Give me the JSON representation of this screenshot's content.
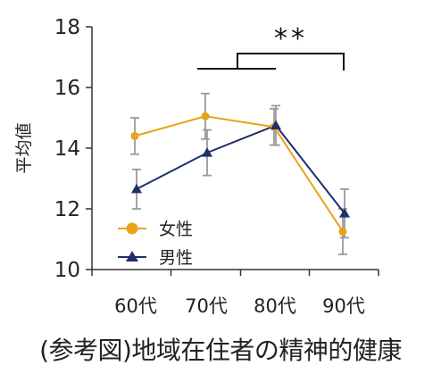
{
  "caption": "(参考図)地域在住者の精神的健康",
  "chart_data": {
    "type": "line",
    "categories": [
      "60代",
      "70代",
      "80代",
      "90代"
    ],
    "ylabel": "平均値",
    "ylim": [
      10,
      18
    ],
    "yticks": [
      10,
      12,
      14,
      16,
      18
    ],
    "grid": false,
    "legend_position": "bottom-left",
    "series": [
      {
        "name": "女性",
        "color": "#E8A317",
        "marker": "circle",
        "values": [
          14.4,
          15.05,
          14.7,
          11.25
        ],
        "errors": [
          0.6,
          0.75,
          0.6,
          0.75
        ]
      },
      {
        "name": "男性",
        "color": "#1F2F6B",
        "marker": "triangle",
        "values": [
          12.65,
          13.85,
          14.75,
          11.85
        ],
        "errors": [
          0.65,
          0.75,
          0.65,
          0.8
        ]
      }
    ],
    "annotations": [
      {
        "text": "**",
        "type": "significance-bracket"
      }
    ]
  }
}
